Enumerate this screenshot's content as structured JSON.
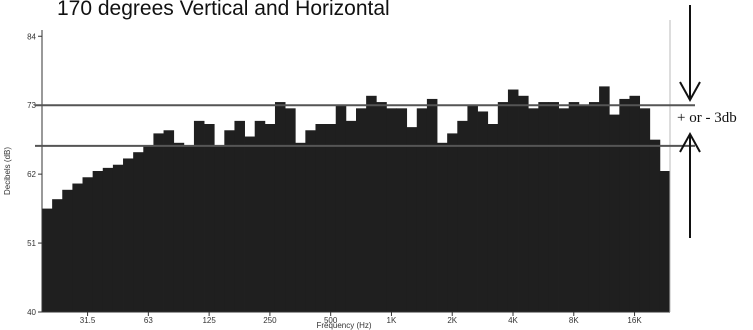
{
  "chart_data": {
    "type": "bar",
    "title": "170 degrees Vertical and Horizontal",
    "xlabel": "Frequency (Hz)",
    "ylabel": "Decibels (dB)",
    "ylim": [
      40,
      85
    ],
    "yticks": [
      {
        "value": 84,
        "label": "84"
      },
      {
        "value": 73,
        "label": "73"
      },
      {
        "value": 62,
        "label": "62"
      },
      {
        "value": 51,
        "label": "51"
      },
      {
        "value": 40,
        "label": "40"
      }
    ],
    "xtick_labels": [
      {
        "label": "31.5",
        "index": 4.5
      },
      {
        "label": "63",
        "index": 10.5
      },
      {
        "label": "125",
        "index": 16.5
      },
      {
        "label": "250",
        "index": 22.5
      },
      {
        "label": "500",
        "index": 28.5
      },
      {
        "label": "1K",
        "index": 34.5
      },
      {
        "label": "2K",
        "index": 40.5
      },
      {
        "label": "4K",
        "index": 46.5
      },
      {
        "label": "8K",
        "index": 52.5
      },
      {
        "label": "16K",
        "index": 58.5
      }
    ],
    "values": [
      56.5,
      58.0,
      59.5,
      60.5,
      61.5,
      62.5,
      63.0,
      63.5,
      64.5,
      65.5,
      66.5,
      68.5,
      69.0,
      67.0,
      66.5,
      70.5,
      70.0,
      66.5,
      69.0,
      70.5,
      68.0,
      70.5,
      70.0,
      73.5,
      72.5,
      67.0,
      69.0,
      70.0,
      70.0,
      73.0,
      70.5,
      72.5,
      74.5,
      73.5,
      72.5,
      72.5,
      69.5,
      72.5,
      74.0,
      67.0,
      68.5,
      70.5,
      73.0,
      72.0,
      70.0,
      73.5,
      75.5,
      74.5,
      72.5,
      73.5,
      73.5,
      72.5,
      73.5,
      73.0,
      73.5,
      76.0,
      71.5,
      74.0,
      74.5,
      72.5,
      67.5,
      62.5
    ],
    "reference_lines": [
      73.0,
      66.5
    ],
    "annotations": {
      "tolerance": "+ or - 3db"
    },
    "colors": {
      "bar": "#1f1f1f",
      "reference_line": "#555555",
      "axis": "#333333",
      "arrow": "#111111"
    },
    "grid": false,
    "legend": "none"
  }
}
